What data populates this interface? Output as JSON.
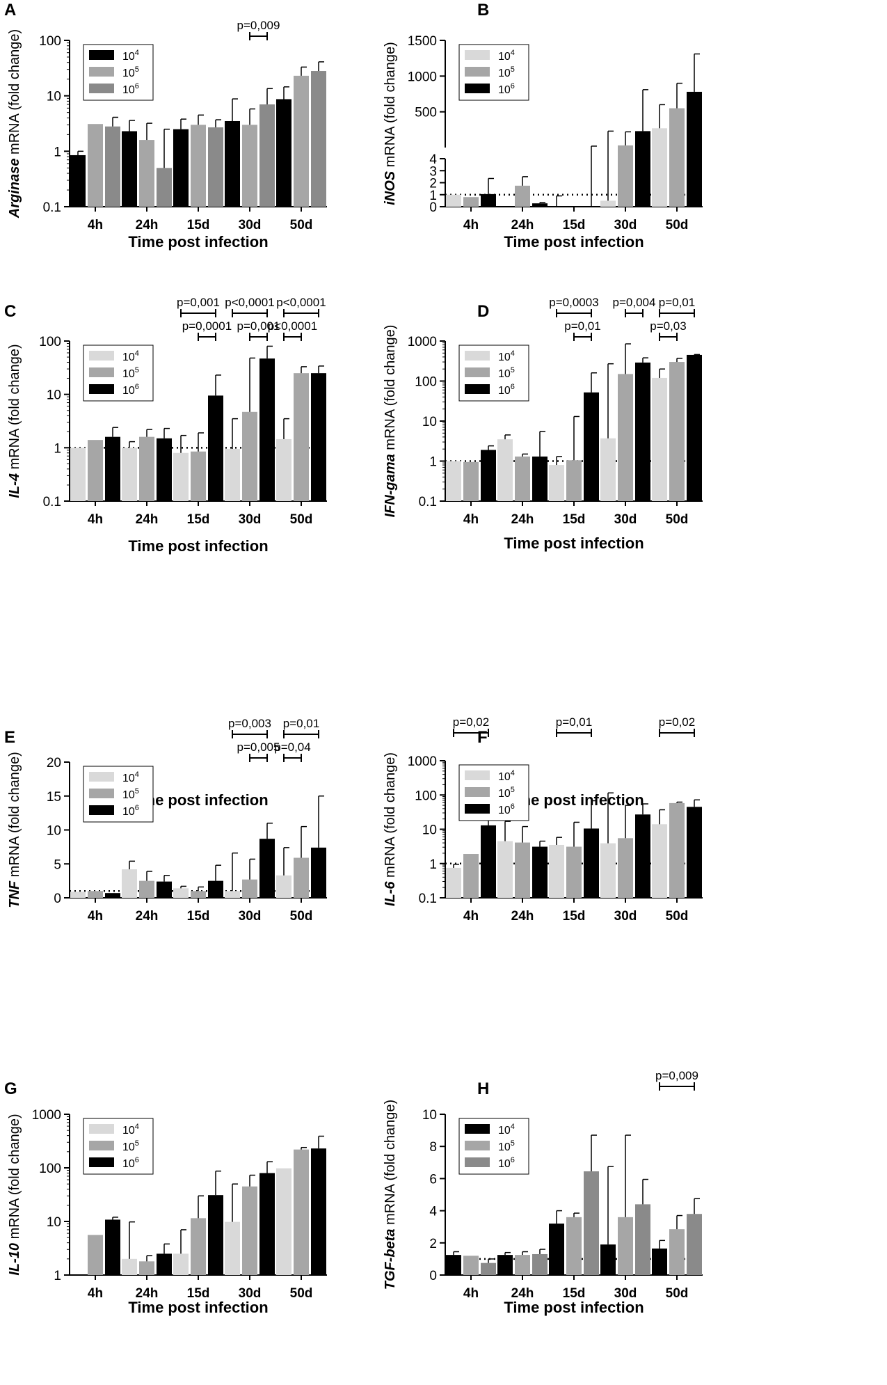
{
  "figure": {
    "x_axis_title": "Time post infection",
    "colors": {
      "light": "#d9d9d9",
      "mid": "#a6a6a6",
      "dark": "#000000",
      "dark_gray": "#8a8a8a"
    }
  },
  "chart_data": [
    {
      "panel": "A",
      "type": "bar",
      "scale": "log",
      "ylabel_italic": "Arginase",
      "ylabel_rest": " mRNA (fold change)",
      "ylim": [
        0.1,
        100
      ],
      "ticks": [
        0.1,
        1,
        10,
        100
      ],
      "tick_labels": [
        "0.1",
        "1",
        "10",
        "100"
      ],
      "categories": [
        "4h",
        "24h",
        "15d",
        "30d",
        "50d"
      ],
      "reference_line": null,
      "legend_position": "top-left",
      "series": [
        {
          "name": "10",
          "sup": "4",
          "color": "#000000",
          "values": [
            0.85,
            2.3,
            2.5,
            3.5,
            8.7
          ],
          "errors": [
            1.0,
            3.6,
            3.8,
            8.8,
            14.5
          ]
        },
        {
          "name": "10",
          "sup": "5",
          "color": "#a6a6a6",
          "values": [
            3.1,
            1.6,
            3.0,
            3.0,
            23
          ],
          "errors": [
            3.1,
            3.2,
            4.5,
            5.8,
            33
          ]
        },
        {
          "name": "10",
          "sup": "6",
          "color": "#8a8a8a",
          "values": [
            2.8,
            0.5,
            2.7,
            7.0,
            28
          ],
          "errors": [
            4.1,
            2.5,
            3.7,
            13.5,
            41
          ]
        }
      ],
      "annotations": [
        {
          "text": "p=0,009",
          "cat": 3,
          "from": 1,
          "to": 2,
          "level": 0
        }
      ]
    },
    {
      "panel": "B",
      "type": "bar",
      "scale": "broken",
      "ylabel_italic": "iNOS",
      "ylabel_rest": " mRNA (fold change)",
      "lower": {
        "ylim": [
          0,
          4
        ],
        "ticks": [
          0,
          1,
          2,
          3,
          4
        ],
        "tick_labels": [
          "0",
          "1",
          "2",
          "3",
          "4"
        ]
      },
      "upper": {
        "ylim": [
          0,
          1500
        ],
        "ticks": [
          500,
          1000,
          1500
        ],
        "tick_labels": [
          "500",
          "1000",
          "1500"
        ]
      },
      "categories": [
        "4h",
        "24h",
        "15d",
        "30d",
        "50d"
      ],
      "reference_line": 1,
      "legend_position": "top-left",
      "series": [
        {
          "name": "10",
          "sup": "4",
          "color": "#d9d9d9",
          "values": [
            1.0,
            0,
            0,
            0.5,
            270
          ],
          "errors": [
            1.0,
            0,
            0.9,
            230,
            600
          ]
        },
        {
          "name": "10",
          "sup": "5",
          "color": "#a6a6a6",
          "values": [
            0.8,
            1.75,
            0,
            30,
            550
          ],
          "errors": [
            0.8,
            2.5,
            0,
            220,
            900
          ]
        },
        {
          "name": "10",
          "sup": "6",
          "color": "#000000",
          "values": [
            1.05,
            0.28,
            0,
            230,
            780
          ],
          "errors": [
            2.35,
            0.35,
            20,
            810,
            1310
          ]
        }
      ],
      "annotations": []
    },
    {
      "panel": "C",
      "type": "bar",
      "scale": "log",
      "ylabel_italic": "IL-4",
      "ylabel_rest": " mRNA (fold change)",
      "ylim": [
        0.1,
        100
      ],
      "ticks": [
        0.1,
        1,
        10,
        100
      ],
      "tick_labels": [
        "0.1",
        "1",
        "10",
        "100"
      ],
      "categories": [
        "4h",
        "24h",
        "15d",
        "30d",
        "50d"
      ],
      "reference_line": 1,
      "legend_position": "top-left",
      "series": [
        {
          "name": "10",
          "sup": "4",
          "color": "#d9d9d9",
          "values": [
            1.0,
            1.0,
            0.8,
            0.95,
            1.45
          ],
          "errors": [
            1.0,
            1.3,
            1.7,
            3.5,
            3.5
          ]
        },
        {
          "name": "10",
          "sup": "5",
          "color": "#a6a6a6",
          "values": [
            1.4,
            1.6,
            0.85,
            4.7,
            25
          ],
          "errors": [
            1.4,
            2.2,
            1.9,
            48,
            33
          ]
        },
        {
          "name": "10",
          "sup": "6",
          "color": "#000000",
          "values": [
            1.6,
            1.5,
            9.5,
            47,
            25
          ],
          "errors": [
            2.4,
            2.3,
            23,
            80,
            34
          ]
        }
      ],
      "annotations": [
        {
          "text": "p=0,0001",
          "cat": 2,
          "from": 1,
          "to": 2,
          "level": 0
        },
        {
          "text": "p=0,001",
          "cat": 2,
          "from": 0,
          "to": 2,
          "level": 1
        },
        {
          "text": "p=0,001",
          "cat": 3,
          "from": 1,
          "to": 2,
          "level": 0
        },
        {
          "text": "p<0,0001",
          "cat": 3,
          "from": 0,
          "to": 2,
          "level": 1
        },
        {
          "text": "p<0,0001",
          "cat": 4,
          "from": 0,
          "to": 1,
          "level": 0
        },
        {
          "text": "p<0,0001",
          "cat": 4,
          "from": 0,
          "to": 2,
          "level": 1
        }
      ]
    },
    {
      "panel": "D",
      "type": "bar",
      "scale": "log",
      "ylabel_italic": "IFN-gama",
      "ylabel_rest": " mRNA (fold change)",
      "ylim": [
        0.1,
        1000
      ],
      "ticks": [
        0.1,
        1,
        10,
        100,
        1000
      ],
      "tick_labels": [
        "0.1",
        "1",
        "10",
        "100",
        "1000"
      ],
      "categories": [
        "4h",
        "24h",
        "15d",
        "30d",
        "50d"
      ],
      "reference_line": 1,
      "legend_position": "top-left",
      "series": [
        {
          "name": "10",
          "sup": "4",
          "color": "#d9d9d9",
          "values": [
            1.0,
            3.5,
            0.8,
            3.7,
            120
          ],
          "errors": [
            1.0,
            4.5,
            1.3,
            270,
            200
          ]
        },
        {
          "name": "10",
          "sup": "5",
          "color": "#a6a6a6",
          "values": [
            0.95,
            1.3,
            1.05,
            150,
            300
          ],
          "errors": [
            0.95,
            1.5,
            13,
            850,
            370
          ]
        },
        {
          "name": "10",
          "sup": "6",
          "color": "#000000",
          "values": [
            1.9,
            1.3,
            52,
            290,
            450
          ],
          "errors": [
            2.4,
            5.5,
            160,
            380,
            460
          ]
        }
      ],
      "annotations": [
        {
          "text": "p=0,01",
          "cat": 2,
          "from": 1,
          "to": 2,
          "level": 0
        },
        {
          "text": "p=0,0003",
          "cat": 2,
          "from": 0,
          "to": 2,
          "level": 1
        },
        {
          "text": "p=0,004",
          "cat": 3,
          "from": 1,
          "to": 2,
          "level": 1
        },
        {
          "text": "p=0,03",
          "cat": 4,
          "from": 0,
          "to": 1,
          "level": 0
        },
        {
          "text": "p=0,01",
          "cat": 4,
          "from": 0,
          "to": 2,
          "level": 1
        }
      ]
    },
    {
      "panel": "E",
      "type": "bar",
      "scale": "linear",
      "ylabel_italic": "TNF",
      "ylabel_rest": " mRNA (fold change)",
      "ylim": [
        0,
        20
      ],
      "ticks": [
        0,
        5,
        10,
        15,
        20
      ],
      "tick_labels": [
        "0",
        "5",
        "10",
        "15",
        "20"
      ],
      "categories": [
        "4h",
        "24h",
        "15d",
        "30d",
        "50d"
      ],
      "reference_line": 1,
      "legend_position": "top-left",
      "series": [
        {
          "name": "10",
          "sup": "4",
          "color": "#d9d9d9",
          "values": [
            0.9,
            4.2,
            1.4,
            1.0,
            3.3
          ],
          "errors": [
            0.9,
            5.4,
            1.7,
            6.6,
            7.4
          ]
        },
        {
          "name": "10",
          "sup": "5",
          "color": "#a6a6a6",
          "values": [
            1.0,
            2.5,
            1.0,
            2.7,
            5.9
          ],
          "errors": [
            1.0,
            3.9,
            1.6,
            5.7,
            10.5
          ]
        },
        {
          "name": "10",
          "sup": "6",
          "color": "#000000",
          "values": [
            0.7,
            2.4,
            2.5,
            8.7,
            7.4
          ],
          "errors": [
            0.7,
            3.3,
            4.8,
            11.0,
            15.0
          ]
        }
      ],
      "annotations": [
        {
          "text": "p=0,005",
          "cat": 3,
          "from": 1,
          "to": 2,
          "level": 0
        },
        {
          "text": "p=0,003",
          "cat": 3,
          "from": 0,
          "to": 2,
          "level": 1
        },
        {
          "text": "p=0,04",
          "cat": 4,
          "from": 0,
          "to": 1,
          "level": 0
        },
        {
          "text": "p=0,01",
          "cat": 4,
          "from": 0,
          "to": 2,
          "level": 1
        }
      ]
    },
    {
      "panel": "F",
      "type": "bar",
      "scale": "log",
      "ylabel_italic": "IL-6",
      "ylabel_rest": " mRNA (fold change)",
      "ylim": [
        0.1,
        1000
      ],
      "ticks": [
        0.1,
        1,
        10,
        100,
        1000
      ],
      "tick_labels": [
        "0.1",
        "1",
        "10",
        "100",
        "1000"
      ],
      "categories": [
        "4h",
        "24h",
        "15d",
        "30d",
        "50d"
      ],
      "reference_line": 1,
      "legend_position": "top-left",
      "series": [
        {
          "name": "10",
          "sup": "4",
          "color": "#d9d9d9",
          "values": [
            0.75,
            4.5,
            3.5,
            3.9,
            14
          ],
          "errors": [
            0.95,
            17,
            5.8,
            115,
            37
          ]
        },
        {
          "name": "10",
          "sup": "5",
          "color": "#a6a6a6",
          "values": [
            1.9,
            4.1,
            3.1,
            5.5,
            58
          ],
          "errors": [
            1.9,
            12,
            16,
            50,
            62
          ]
        },
        {
          "name": "10",
          "sup": "6",
          "color": "#000000",
          "values": [
            13,
            3.1,
            10.5,
            27,
            45
          ],
          "errors": [
            20,
            4.5,
            68,
            55,
            72
          ]
        }
      ],
      "annotations": [
        {
          "text": "p=0,02",
          "cat": 0,
          "from": 0,
          "to": 2,
          "level": 1
        },
        {
          "text": "p=0,01",
          "cat": 2,
          "from": 0,
          "to": 2,
          "level": 1
        },
        {
          "text": "p=0,02",
          "cat": 4,
          "from": 0,
          "to": 2,
          "level": 1
        }
      ]
    },
    {
      "panel": "G",
      "type": "bar",
      "scale": "log",
      "ylabel_italic": "IL-10",
      "ylabel_rest": " mRNA (fold change)",
      "ylim": [
        1,
        1000
      ],
      "ticks": [
        1,
        10,
        100,
        1000
      ],
      "tick_labels": [
        "1",
        "10",
        "100",
        "1000"
      ],
      "categories": [
        "4h",
        "24h",
        "15d",
        "30d",
        "50d"
      ],
      "reference_line": null,
      "legend_position": "top-left",
      "series": [
        {
          "name": "10",
          "sup": "4",
          "color": "#d9d9d9",
          "values": [
            1,
            2.0,
            2.5,
            9.8,
            98
          ],
          "errors": [
            1,
            9.8,
            7.0,
            50,
            98
          ]
        },
        {
          "name": "10",
          "sup": "5",
          "color": "#a6a6a6",
          "values": [
            5.6,
            1.8,
            11.5,
            45,
            220
          ],
          "errors": [
            5.6,
            2.3,
            30,
            73,
            240
          ]
        },
        {
          "name": "10",
          "sup": "6",
          "color": "#000000",
          "values": [
            10.8,
            2.5,
            31,
            80,
            230
          ],
          "errors": [
            12,
            3.8,
            87,
            130,
            390
          ]
        }
      ],
      "annotations": []
    },
    {
      "panel": "H",
      "type": "bar",
      "scale": "linear",
      "ylabel_italic": "TGF-beta",
      "ylabel_rest": " mRNA (fold change)",
      "ylim": [
        0,
        10
      ],
      "ticks": [
        0,
        2,
        4,
        6,
        8,
        10
      ],
      "tick_labels": [
        "0",
        "2",
        "4",
        "6",
        "8",
        "10"
      ],
      "categories": [
        "4h",
        "24h",
        "15d",
        "30d",
        "50d"
      ],
      "reference_line": 1,
      "legend_position": "top-left",
      "series": [
        {
          "name": "10",
          "sup": "4",
          "color": "#000000",
          "values": [
            1.25,
            1.25,
            3.2,
            1.9,
            1.65
          ],
          "errors": [
            1.45,
            1.4,
            4.0,
            6.75,
            2.15
          ]
        },
        {
          "name": "10",
          "sup": "5",
          "color": "#a6a6a6",
          "values": [
            1.2,
            1.25,
            3.6,
            3.6,
            2.85
          ],
          "errors": [
            1.2,
            1.45,
            3.85,
            8.7,
            3.7
          ]
        },
        {
          "name": "10",
          "sup": "6",
          "color": "#8a8a8a",
          "values": [
            0.75,
            1.3,
            6.45,
            4.4,
            3.8
          ],
          "errors": [
            1.0,
            1.6,
            8.7,
            5.95,
            4.75
          ]
        }
      ],
      "annotations": [
        {
          "text": "p=0,009",
          "cat": 4,
          "from": 0,
          "to": 2,
          "level": 1
        }
      ]
    }
  ]
}
